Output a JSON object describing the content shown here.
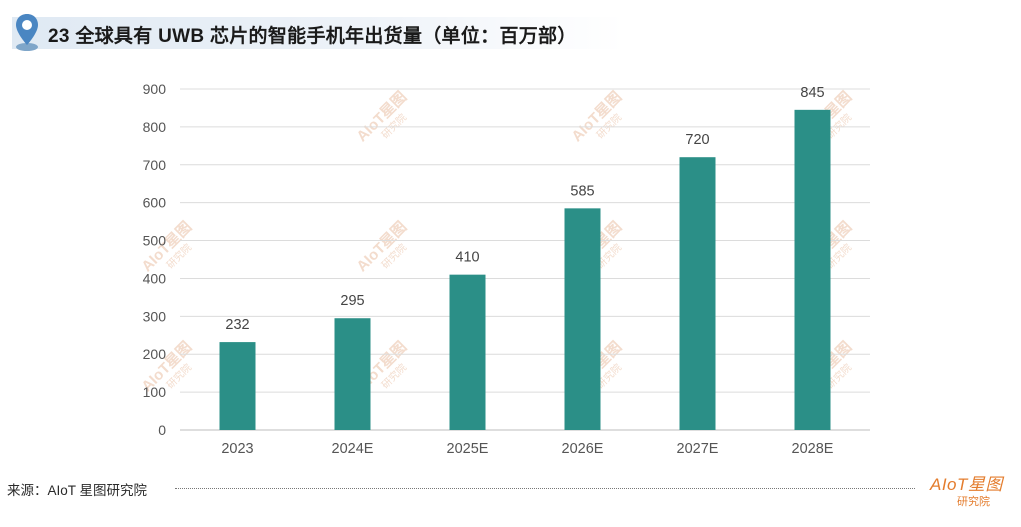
{
  "header": {
    "title": "23 全球具有 UWB 芯片的智能手机年出货量（单位：百万部）",
    "icon": "location-pin-icon",
    "bar_color": "#dfe9f3"
  },
  "chart_data": {
    "type": "bar",
    "title": "23 全球具有 UWB 芯片的智能手机年出货量（单位：百万部）",
    "categories": [
      "2023",
      "2024E",
      "2025E",
      "2026E",
      "2027E",
      "2028E"
    ],
    "values": [
      232,
      295,
      410,
      585,
      720,
      845
    ],
    "value_labels": [
      "232",
      "295",
      "410",
      "585",
      "720",
      "845"
    ],
    "y_ticks": [
      "900",
      "800",
      "700",
      "600",
      "500",
      "400",
      "300",
      "200",
      "100",
      "0"
    ],
    "ylim": [
      0,
      900
    ],
    "xlabel": "",
    "ylabel": "",
    "grid": true,
    "legend": "none",
    "bar_color": "#2b8f87"
  },
  "watermark": {
    "main": "AIoT星图",
    "sub": "研究院",
    "color": "#f3dccd"
  },
  "footer": {
    "source": "来源：AIoT 星图研究院",
    "logo_main": "AIoT星图",
    "logo_sub": "研究院",
    "logo_color": "#e47d2e"
  }
}
